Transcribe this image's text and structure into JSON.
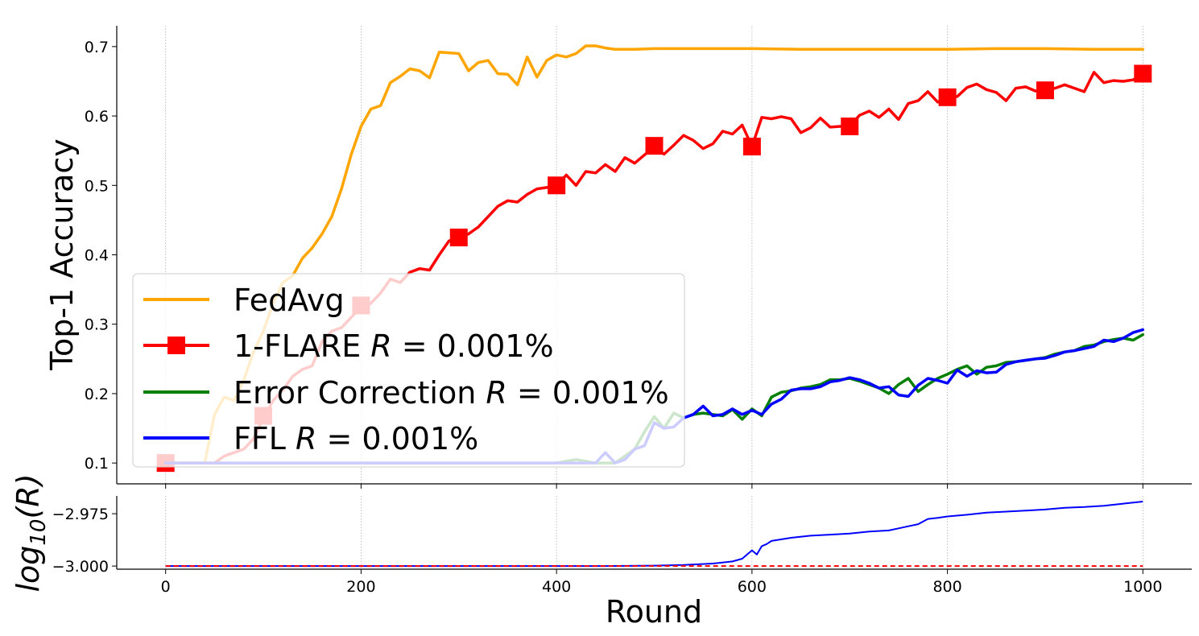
{
  "chart_data": [
    {
      "type": "line",
      "xlabel": "Round",
      "ylabel": "Top-1 Accuracy",
      "xlim": [
        -50,
        1050
      ],
      "ylim": [
        0.07,
        0.73
      ],
      "xticks": [
        0,
        200,
        400,
        600,
        800,
        1000
      ],
      "xtick_labels": [
        "0",
        "200",
        "400",
        "600",
        "800",
        "1000"
      ],
      "yticks": [
        0.1,
        0.2,
        0.3,
        0.4,
        0.5,
        0.6,
        0.7
      ],
      "ytick_labels": [
        "0.1",
        "0.2",
        "0.3",
        "0.4",
        "0.5",
        "0.6",
        "0.7"
      ],
      "grid": "vertical dotted at x ticks",
      "legend_position": "lower-left",
      "series": [
        {
          "name": "FedAvg",
          "color": "#ffa500",
          "x": [
            0,
            10,
            20,
            30,
            40,
            50,
            60,
            70,
            80,
            90,
            100,
            110,
            120,
            130,
            140,
            150,
            160,
            170,
            180,
            190,
            200,
            210,
            220,
            230,
            240,
            250,
            260,
            270,
            280,
            290,
            300,
            310,
            320,
            330,
            340,
            350,
            360,
            370,
            380,
            390,
            400,
            410,
            420,
            430,
            440,
            450,
            460,
            480,
            500,
            550,
            600,
            650,
            700,
            750,
            800,
            850,
            900,
            950,
            1000
          ],
          "values": [
            0.1,
            0.1,
            0.1,
            0.1,
            0.1,
            0.17,
            0.195,
            0.19,
            0.22,
            0.26,
            0.29,
            0.33,
            0.36,
            0.37,
            0.395,
            0.41,
            0.43,
            0.455,
            0.495,
            0.545,
            0.585,
            0.61,
            0.615,
            0.648,
            0.657,
            0.668,
            0.665,
            0.655,
            0.692,
            0.691,
            0.69,
            0.665,
            0.677,
            0.68,
            0.661,
            0.66,
            0.645,
            0.685,
            0.656,
            0.68,
            0.688,
            0.685,
            0.69,
            0.701,
            0.701,
            0.698,
            0.696,
            0.696,
            0.697,
            0.697,
            0.697,
            0.696,
            0.696,
            0.696,
            0.696,
            0.697,
            0.697,
            0.696,
            0.696
          ]
        },
        {
          "name": "1-FLARE R = 0.001%",
          "color": "#ff0000",
          "marker": "square",
          "x": [
            0,
            50,
            60,
            70,
            80,
            90,
            100,
            110,
            120,
            130,
            140,
            150,
            160,
            170,
            180,
            190,
            200,
            210,
            220,
            230,
            240,
            250,
            260,
            270,
            280,
            290,
            300,
            310,
            320,
            330,
            340,
            350,
            360,
            370,
            380,
            390,
            400,
            410,
            420,
            430,
            440,
            450,
            460,
            470,
            480,
            490,
            500,
            510,
            520,
            530,
            540,
            550,
            560,
            570,
            580,
            590,
            600,
            610,
            620,
            630,
            640,
            650,
            660,
            670,
            680,
            690,
            700,
            710,
            720,
            730,
            740,
            750,
            760,
            770,
            780,
            790,
            800,
            810,
            820,
            830,
            840,
            850,
            860,
            870,
            880,
            890,
            900,
            910,
            920,
            930,
            940,
            950,
            960,
            970,
            980,
            990,
            1000
          ],
          "values": [
            0.1,
            0.1,
            0.11,
            0.115,
            0.12,
            0.135,
            0.165,
            0.19,
            0.205,
            0.225,
            0.235,
            0.24,
            0.275,
            0.29,
            0.295,
            0.31,
            0.325,
            0.33,
            0.345,
            0.365,
            0.36,
            0.375,
            0.38,
            0.378,
            0.4,
            0.42,
            0.425,
            0.43,
            0.44,
            0.455,
            0.47,
            0.478,
            0.476,
            0.487,
            0.495,
            0.497,
            0.5,
            0.515,
            0.5,
            0.52,
            0.518,
            0.53,
            0.52,
            0.54,
            0.532,
            0.544,
            0.555,
            0.545,
            0.558,
            0.572,
            0.565,
            0.553,
            0.56,
            0.578,
            0.574,
            0.587,
            0.556,
            0.598,
            0.596,
            0.599,
            0.596,
            0.576,
            0.583,
            0.597,
            0.584,
            0.585,
            0.585,
            0.601,
            0.607,
            0.598,
            0.61,
            0.595,
            0.618,
            0.622,
            0.635,
            0.62,
            0.627,
            0.628,
            0.641,
            0.646,
            0.638,
            0.634,
            0.622,
            0.64,
            0.642,
            0.636,
            0.636,
            0.64,
            0.645,
            0.64,
            0.635,
            0.663,
            0.648,
            0.651,
            0.65,
            0.652,
            0.661
          ],
          "marker_x": [
            0,
            100,
            200,
            300,
            400,
            500,
            600,
            700,
            800,
            900,
            1000
          ],
          "marker_values": [
            0.1,
            0.168,
            0.327,
            0.425,
            0.5,
            0.557,
            0.556,
            0.585,
            0.627,
            0.637,
            0.661
          ]
        },
        {
          "name": "Error Correction R = 0.001%",
          "color": "#008000",
          "x": [
            0,
            100,
            200,
            300,
            400,
            420,
            440,
            460,
            480,
            490,
            500,
            510,
            520,
            530,
            540,
            550,
            560,
            570,
            580,
            590,
            600,
            610,
            620,
            630,
            640,
            650,
            660,
            670,
            680,
            690,
            700,
            710,
            720,
            730,
            740,
            750,
            760,
            770,
            780,
            790,
            800,
            810,
            820,
            830,
            840,
            850,
            860,
            870,
            880,
            890,
            900,
            910,
            920,
            930,
            940,
            950,
            960,
            970,
            980,
            990,
            1000
          ],
          "values": [
            0.1,
            0.1,
            0.1,
            0.1,
            0.1,
            0.105,
            0.1,
            0.1,
            0.12,
            0.145,
            0.167,
            0.15,
            0.172,
            0.165,
            0.17,
            0.172,
            0.17,
            0.168,
            0.177,
            0.163,
            0.178,
            0.168,
            0.195,
            0.202,
            0.204,
            0.208,
            0.21,
            0.213,
            0.22,
            0.22,
            0.222,
            0.218,
            0.213,
            0.208,
            0.2,
            0.213,
            0.222,
            0.203,
            0.213,
            0.222,
            0.228,
            0.235,
            0.24,
            0.228,
            0.238,
            0.24,
            0.245,
            0.246,
            0.248,
            0.25,
            0.252,
            0.257,
            0.26,
            0.262,
            0.268,
            0.27,
            0.275,
            0.278,
            0.28,
            0.277,
            0.285
          ]
        },
        {
          "name": "FFL R = 0.001%",
          "color": "#0000ff",
          "x": [
            0,
            100,
            200,
            300,
            400,
            420,
            440,
            450,
            460,
            470,
            480,
            490,
            500,
            510,
            520,
            530,
            540,
            550,
            560,
            570,
            580,
            590,
            600,
            610,
            620,
            630,
            640,
            650,
            660,
            670,
            680,
            690,
            700,
            710,
            720,
            730,
            740,
            750,
            760,
            770,
            780,
            790,
            800,
            810,
            820,
            830,
            840,
            850,
            860,
            870,
            880,
            890,
            900,
            910,
            920,
            930,
            940,
            950,
            960,
            970,
            980,
            990,
            1000
          ],
          "values": [
            0.1,
            0.1,
            0.1,
            0.1,
            0.1,
            0.1,
            0.1,
            0.115,
            0.1,
            0.105,
            0.12,
            0.125,
            0.158,
            0.15,
            0.152,
            0.165,
            0.17,
            0.182,
            0.168,
            0.17,
            0.178,
            0.17,
            0.176,
            0.17,
            0.185,
            0.192,
            0.205,
            0.207,
            0.207,
            0.21,
            0.217,
            0.219,
            0.223,
            0.22,
            0.215,
            0.208,
            0.21,
            0.198,
            0.196,
            0.212,
            0.222,
            0.219,
            0.215,
            0.234,
            0.225,
            0.233,
            0.23,
            0.231,
            0.242,
            0.246,
            0.248,
            0.25,
            0.251,
            0.255,
            0.26,
            0.262,
            0.265,
            0.268,
            0.277,
            0.275,
            0.28,
            0.288,
            0.292
          ]
        }
      ]
    },
    {
      "type": "line",
      "xlabel": "",
      "ylabel": "log10(R)",
      "ylabel_main": "log",
      "ylabel_sub": "10",
      "ylabel_tail": "(R)",
      "xlim": [
        -50,
        1050
      ],
      "ylim": [
        -3.0015,
        -2.9665
      ],
      "yticks": [
        -3.0,
        -2.975
      ],
      "ytick_labels": [
        "−3.000",
        "−2.975"
      ],
      "grid": "vertical dotted at x ticks",
      "series": [
        {
          "color": "#0000ff",
          "x": [
            0,
            100,
            200,
            300,
            400,
            450,
            500,
            530,
            560,
            580,
            590,
            595,
            600,
            605,
            610,
            615,
            620,
            640,
            660,
            680,
            700,
            720,
            740,
            750,
            760,
            770,
            780,
            790,
            800,
            820,
            840,
            860,
            880,
            900,
            920,
            940,
            960,
            980,
            1000
          ],
          "values": [
            -3.0,
            -3.0,
            -3.0,
            -3.0,
            -3.0,
            -3.0,
            -2.9998,
            -2.9995,
            -2.9988,
            -2.9978,
            -2.9965,
            -2.9945,
            -2.9925,
            -2.9945,
            -2.9905,
            -2.9895,
            -2.988,
            -2.9865,
            -2.9855,
            -2.985,
            -2.9845,
            -2.9835,
            -2.983,
            -2.982,
            -2.981,
            -2.98,
            -2.9775,
            -2.977,
            -2.9763,
            -2.9755,
            -2.9745,
            -2.974,
            -2.9735,
            -2.973,
            -2.9722,
            -2.9718,
            -2.9712,
            -2.9702,
            -2.9692
          ]
        },
        {
          "color": "#ff0000",
          "style": "dashed",
          "x": [
            0,
            1000
          ],
          "values": [
            -3.0,
            -3.0
          ]
        }
      ]
    }
  ]
}
